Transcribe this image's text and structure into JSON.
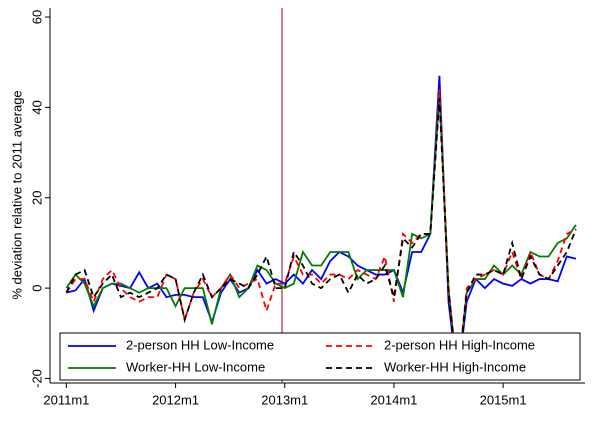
{
  "chart_data": {
    "type": "line",
    "y_label": "% deviation relative to 2011 average",
    "x": [
      0,
      1,
      2,
      3,
      4,
      5,
      6,
      7,
      8,
      9,
      10,
      11,
      12,
      13,
      14,
      15,
      16,
      17,
      18,
      19,
      20,
      21,
      22,
      23,
      24,
      25,
      26,
      27,
      28,
      29,
      30,
      31,
      32,
      33,
      34,
      35,
      36,
      37,
      38,
      39,
      40,
      41,
      42,
      43,
      44,
      45,
      46,
      47,
      48,
      49,
      50,
      51,
      52,
      53,
      54,
      55,
      56
    ],
    "xlim": [
      -1.8,
      57
    ],
    "xticks": [
      {
        "value": 0,
        "label": "2011m1"
      },
      {
        "value": 12,
        "label": "2012m1"
      },
      {
        "value": 24,
        "label": "2013m1"
      },
      {
        "value": 36,
        "label": "2014m1"
      },
      {
        "value": 48,
        "label": "2015m1"
      }
    ],
    "ylim": [
      -21,
      62
    ],
    "yticks": [
      -20,
      0,
      20,
      40,
      60
    ],
    "vline": 23.7,
    "vline_color": "#990033",
    "series": [
      {
        "name": "2-person HH Low-Income",
        "color": "#0000ff",
        "dash": false,
        "values": [
          -1,
          -0.5,
          2,
          -5,
          0,
          1,
          0.5,
          0,
          3.5,
          0,
          1,
          -2,
          -1.5,
          -1.5,
          -2,
          -2,
          -7.5,
          -1,
          2,
          -1,
          0,
          4,
          1,
          2,
          1,
          3,
          1,
          4,
          2,
          6,
          8,
          7,
          5,
          4,
          3,
          3,
          4,
          -1,
          8,
          8,
          12,
          47,
          -3,
          -20,
          -3,
          2,
          0,
          2,
          1,
          0.5,
          2,
          1,
          2,
          2,
          1.5,
          7,
          6.5
        ]
      },
      {
        "name": "Worker-HH Low-Income",
        "color": "#008000",
        "dash": false,
        "values": [
          0,
          3,
          1,
          -4,
          0,
          1,
          1,
          0,
          -1,
          0,
          0,
          0,
          -4,
          0,
          0,
          0,
          -8,
          0,
          3,
          -2,
          0,
          5,
          4,
          1,
          0,
          1,
          8,
          5,
          5,
          8,
          8,
          8,
          2,
          4,
          4,
          4,
          4,
          -2,
          12,
          11,
          12,
          43,
          0,
          -20,
          -1,
          2,
          2,
          5,
          3,
          5,
          3,
          8,
          7,
          7,
          10,
          11,
          14
        ]
      },
      {
        "name": "2-person HH High-Income",
        "color": "#ff0000",
        "dash": true,
        "values": [
          -1,
          2,
          2,
          -3,
          2,
          4,
          0,
          -2,
          -3,
          -2,
          -2,
          3,
          2,
          -7,
          -1,
          2,
          -2,
          0,
          3,
          0,
          1,
          2,
          -5,
          1,
          1,
          7,
          3,
          3,
          1,
          3,
          3,
          2,
          4,
          3,
          2,
          7,
          -3,
          12,
          10,
          12,
          12,
          44,
          0,
          -20,
          0,
          2,
          3,
          4,
          3,
          8,
          2,
          8,
          3,
          2,
          6,
          12,
          13
        ]
      },
      {
        "name": "Worker-HH High-Income",
        "color": "#000000",
        "dash": true,
        "values": [
          -1,
          3,
          4,
          -2,
          1,
          3,
          -2,
          -1,
          -2,
          -1,
          0,
          3,
          2,
          -7,
          -1,
          3,
          -2,
          0,
          2,
          1,
          0,
          3,
          7,
          0,
          0,
          8,
          5,
          1,
          0,
          2,
          3,
          -1,
          3,
          1,
          2,
          5,
          -2,
          11,
          9,
          12,
          12,
          42,
          -1,
          -20,
          -1,
          3,
          3,
          4,
          3,
          10,
          2,
          7,
          3,
          2,
          5,
          8,
          13
        ]
      }
    ]
  }
}
